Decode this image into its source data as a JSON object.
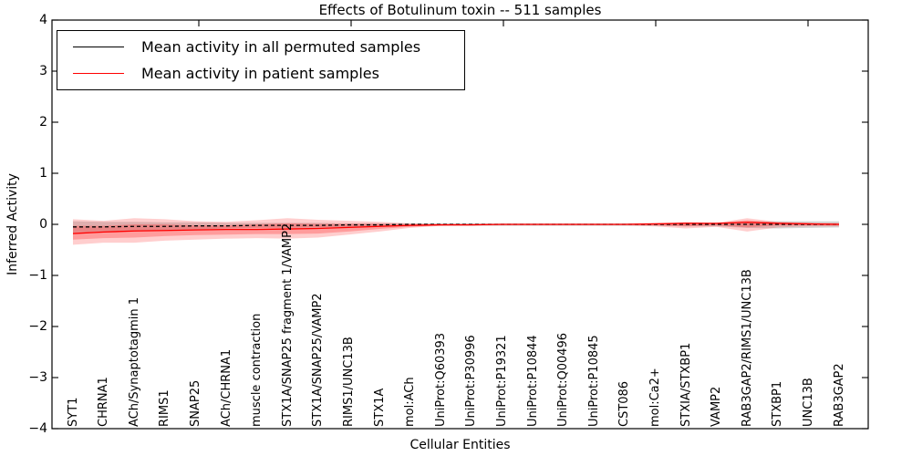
{
  "figure": {
    "title": "Effects of Botulinum toxin -- 511 samples",
    "xlabel": "Cellular Entities",
    "ylabel": "Inferred Activity"
  },
  "legend": {
    "entries": [
      {
        "label": "Mean activity in all permuted samples",
        "color": "#000000"
      },
      {
        "label": "Mean activity in patient samples",
        "color": "#ff0000"
      }
    ]
  },
  "chart_data": {
    "type": "line",
    "title": "Effects of Botulinum toxin -- 511 samples",
    "xlabel": "Cellular Entities",
    "ylabel": "Inferred Activity",
    "ylim": [
      -4,
      4
    ],
    "grid": false,
    "legend_position": "upper left",
    "y_tick_labels": [
      "4",
      "3",
      "2",
      "1",
      "0",
      "−1",
      "−2",
      "−3",
      "−4"
    ],
    "y_tick_values": [
      4,
      3,
      2,
      1,
      0,
      -1,
      -2,
      -3,
      -4
    ],
    "categories": [
      "SYT1",
      "CHRNA1",
      "ACh/Synaptotagmin 1",
      "RIMS1",
      "SNAP25",
      "ACh/CHRNA1",
      "muscle contraction",
      "STX1A/SNAP25 fragment 1/VAMP2",
      "STX1A/SNAP25/VAMP2",
      "RIMS1/UNC13B",
      "STX1A",
      "mol:ACh",
      "UniProt:Q60393",
      "UniProt:P30996",
      "UniProt:P19321",
      "UniProt:P10844",
      "UniProt:Q00496",
      "UniProt:P10845",
      "CST086",
      "mol:Ca2+",
      "STXIA/STXBP1",
      "VAMP2",
      "RAB3GAP2/RIMS1/UNC13B",
      "STXBP1",
      "UNC13B",
      "RAB3GAP2"
    ],
    "series": [
      {
        "name": "Mean activity in all permuted samples",
        "color": "#000000",
        "style": "dashed",
        "values": [
          -0.05,
          -0.05,
          -0.04,
          -0.04,
          -0.03,
          -0.03,
          -0.02,
          -0.02,
          -0.02,
          -0.01,
          -0.01,
          0,
          0,
          0,
          0,
          0,
          0,
          0,
          0,
          0,
          0,
          0,
          0,
          0,
          0,
          0
        ]
      },
      {
        "name": "Mean activity in patient samples",
        "color": "#ff0000",
        "style": "solid",
        "values": [
          -0.18,
          -0.15,
          -0.13,
          -0.12,
          -0.11,
          -0.1,
          -0.1,
          -0.09,
          -0.08,
          -0.06,
          -0.04,
          -0.02,
          -0.01,
          -0.01,
          0,
          0,
          0,
          0,
          0,
          0.01,
          0.02,
          0.02,
          0.04,
          0.02,
          0.01,
          0
        ]
      }
    ],
    "bands": [
      {
        "name": "permuted-std-band",
        "color": "rgba(120,120,120,0.30)",
        "upper": [
          0.06,
          0.05,
          0.05,
          0.04,
          0.04,
          0.03,
          0.03,
          0.03,
          0.03,
          0.02,
          0.02,
          0.02,
          0.02,
          0.02,
          0.02,
          0.02,
          0.02,
          0.02,
          0.02,
          0.02,
          0.03,
          0.03,
          0.05,
          0.06,
          0.06,
          0.06
        ],
        "lower": [
          -0.16,
          -0.14,
          -0.13,
          -0.11,
          -0.1,
          -0.08,
          -0.07,
          -0.07,
          -0.06,
          -0.05,
          -0.04,
          -0.03,
          -0.03,
          -0.03,
          -0.03,
          -0.03,
          -0.03,
          -0.03,
          -0.03,
          -0.03,
          -0.04,
          -0.04,
          -0.07,
          -0.08,
          -0.07,
          -0.06
        ]
      },
      {
        "name": "patient-std-outer-band",
        "color": "rgba(255,30,30,0.22)",
        "upper": [
          0.1,
          0.07,
          0.12,
          0.1,
          0.06,
          0.05,
          0.08,
          0.12,
          0.09,
          0.07,
          0.05,
          0.02,
          0.01,
          0.01,
          0.01,
          0.01,
          0.01,
          0.01,
          0.01,
          0.02,
          0.05,
          0.03,
          0.12,
          0.05,
          0.03,
          0.03
        ],
        "lower": [
          -0.4,
          -0.36,
          -0.36,
          -0.32,
          -0.3,
          -0.28,
          -0.27,
          -0.28,
          -0.26,
          -0.2,
          -0.14,
          -0.07,
          -0.03,
          -0.02,
          -0.02,
          -0.02,
          -0.02,
          -0.02,
          -0.02,
          -0.04,
          -0.08,
          -0.05,
          -0.14,
          -0.06,
          -0.04,
          -0.04
        ],
        "fill_between": true
      },
      {
        "name": "patient-std-inner-band",
        "color": "rgba(255,30,30,0.28)",
        "upper": [
          -0.03,
          -0.03,
          0,
          0,
          -0.02,
          -0.02,
          0,
          0.02,
          0.01,
          0.01,
          0.01,
          0,
          0,
          0,
          0.005,
          0.005,
          0.005,
          0.005,
          0.005,
          0.015,
          0.035,
          0.025,
          0.08,
          0.035,
          0.02,
          0.015
        ],
        "lower": [
          -0.3,
          -0.27,
          -0.26,
          -0.23,
          -0.21,
          -0.2,
          -0.19,
          -0.19,
          -0.18,
          -0.14,
          -0.09,
          -0.05,
          -0.02,
          -0.015,
          -0.01,
          -0.01,
          -0.01,
          -0.01,
          -0.01,
          -0.02,
          -0.04,
          -0.02,
          -0.06,
          -0.02,
          -0.02,
          -0.02
        ]
      }
    ]
  }
}
